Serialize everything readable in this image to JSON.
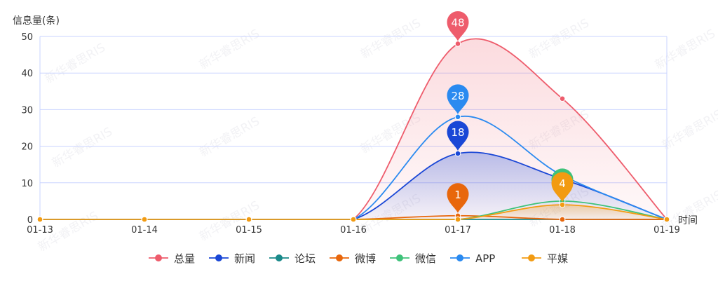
{
  "chart_data": {
    "type": "line",
    "ylabel": "信息量(条)",
    "xlabel": "时间",
    "ylim": [
      0,
      50
    ],
    "yticks": [
      0,
      10,
      20,
      30,
      40,
      50
    ],
    "categories": [
      "01-13",
      "01-14",
      "01-15",
      "01-16",
      "01-17",
      "01-18",
      "01-19"
    ],
    "grid": true,
    "legend_position": "bottom",
    "series": [
      {
        "name": "总量",
        "color": "#ee5c6c",
        "values": [
          0,
          0,
          0,
          0,
          48,
          33,
          0
        ],
        "area": true,
        "marker": 48
      },
      {
        "name": "新闻",
        "color": "#1a47d6",
        "values": [
          0,
          0,
          0,
          0,
          18,
          11,
          0
        ],
        "area": true,
        "marker": 18
      },
      {
        "name": "论坛",
        "color": "#1a8a8a",
        "values": [
          0,
          0,
          0,
          0,
          0,
          0,
          0
        ],
        "area": false,
        "marker": null
      },
      {
        "name": "微博",
        "color": "#e8670c",
        "values": [
          0,
          0,
          0,
          0,
          1,
          0,
          0
        ],
        "area": false,
        "marker": 1
      },
      {
        "name": "微信",
        "color": "#3fc27a",
        "values": [
          0,
          0,
          0,
          0,
          0,
          5,
          0
        ],
        "area": false,
        "marker": 5
      },
      {
        "name": "APP",
        "color": "#2a8af0",
        "values": [
          0,
          0,
          0,
          0,
          28,
          12,
          0
        ],
        "area": false,
        "marker": 28
      },
      {
        "name": "平媒",
        "color": "#f29b12",
        "values": [
          0,
          0,
          0,
          0,
          0,
          4,
          0
        ],
        "area": true,
        "marker": 4
      }
    ]
  },
  "watermark": {
    "text": "新华睿思RIS"
  }
}
